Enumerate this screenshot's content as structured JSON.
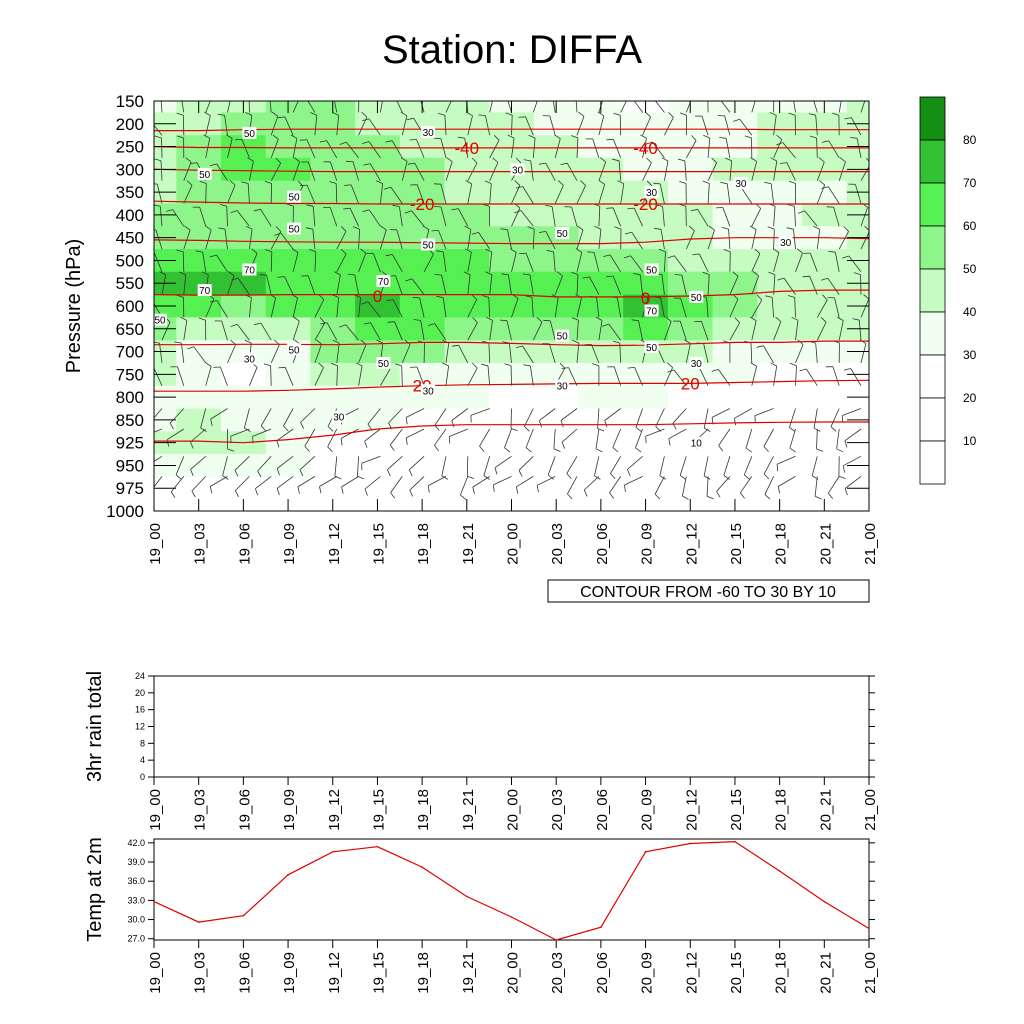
{
  "title": "Station: DIFFA",
  "colors": {
    "accent": "#e00000",
    "green_fills": [
      "#ffffff",
      "#ffffff",
      "#ffffff",
      "#f1fff0",
      "#c6fcc2",
      "#8ef58a",
      "#56f052",
      "#32c132",
      "#148f14"
    ]
  },
  "chart_data": [
    {
      "id": "cross_section",
      "type": "heatmap",
      "ylabel": "Pressure (hPa)",
      "y_levels": [
        150,
        200,
        250,
        300,
        350,
        400,
        450,
        500,
        550,
        600,
        650,
        700,
        750,
        800,
        850,
        925,
        950,
        975,
        1000
      ],
      "x_ticks": [
        "19_00",
        "19_03",
        "19_06",
        "19_09",
        "19_12",
        "19_15",
        "19_18",
        "19_21",
        "20_00",
        "20_03",
        "20_06",
        "20_09",
        "20_12",
        "20_15",
        "20_18",
        "20_21",
        "21_00"
      ],
      "info_label": "CONTOUR FROM -60 TO 30 BY 10",
      "colorbar": {
        "levels": [
          10,
          20,
          30,
          40,
          50,
          60,
          70,
          80
        ],
        "label_values": [
          "10",
          "20",
          "30",
          "40",
          "50",
          "60",
          "70",
          "80"
        ]
      },
      "humidity_grid": [
        [
          35,
          40,
          45,
          50,
          50,
          45,
          40,
          40,
          38,
          35,
          30,
          28,
          30,
          32,
          35,
          38,
          40
        ],
        [
          40,
          48,
          52,
          55,
          50,
          48,
          45,
          42,
          40,
          38,
          33,
          30,
          32,
          35,
          40,
          40,
          42
        ],
        [
          42,
          55,
          60,
          58,
          52,
          50,
          48,
          45,
          42,
          40,
          38,
          35,
          35,
          38,
          42,
          42,
          45
        ],
        [
          45,
          55,
          62,
          60,
          55,
          52,
          50,
          48,
          45,
          42,
          40,
          38,
          38,
          40,
          42,
          42,
          45
        ],
        [
          48,
          52,
          55,
          55,
          55,
          52,
          50,
          48,
          45,
          45,
          42,
          40,
          38,
          35,
          35,
          38,
          45
        ],
        [
          50,
          50,
          52,
          55,
          55,
          52,
          50,
          50,
          48,
          48,
          45,
          42,
          40,
          30,
          33,
          40,
          45
        ],
        [
          52,
          55,
          58,
          58,
          58,
          55,
          52,
          52,
          52,
          50,
          48,
          45,
          42,
          38,
          35,
          38,
          40
        ],
        [
          60,
          62,
          62,
          62,
          62,
          60,
          60,
          60,
          58,
          58,
          55,
          52,
          48,
          42,
          40,
          40,
          42
        ],
        [
          75,
          72,
          70,
          68,
          62,
          68,
          65,
          62,
          62,
          62,
          62,
          65,
          55,
          50,
          45,
          42,
          42
        ],
        [
          68,
          62,
          58,
          60,
          60,
          74,
          66,
          62,
          62,
          62,
          62,
          72,
          66,
          55,
          48,
          45,
          45
        ],
        [
          55,
          40,
          40,
          45,
          58,
          65,
          60,
          58,
          58,
          55,
          58,
          62,
          55,
          45,
          42,
          40,
          40
        ],
        [
          48,
          30,
          30,
          32,
          50,
          52,
          50,
          48,
          45,
          42,
          45,
          48,
          42,
          38,
          35,
          35,
          35
        ],
        [
          40,
          30,
          28,
          30,
          42,
          40,
          38,
          35,
          33,
          32,
          35,
          38,
          35,
          30,
          28,
          28,
          28
        ],
        [
          35,
          35,
          32,
          32,
          38,
          35,
          32,
          30,
          28,
          28,
          30,
          30,
          28,
          25,
          22,
          22,
          22
        ],
        [
          38,
          40,
          38,
          35,
          32,
          30,
          28,
          25,
          22,
          20,
          22,
          22,
          20,
          18,
          15,
          15,
          15
        ],
        [
          42,
          45,
          40,
          35,
          28,
          22,
          18,
          15,
          12,
          12,
          12,
          12,
          10,
          10,
          10,
          10,
          10
        ],
        [
          35,
          38,
          32,
          30,
          18,
          12,
          10,
          10,
          10,
          10,
          10,
          10,
          10,
          10,
          10,
          10,
          10
        ],
        [
          18,
          18,
          15,
          12,
          10,
          10,
          10,
          10,
          10,
          10,
          10,
          10,
          10,
          10,
          10,
          10,
          10
        ],
        [
          10,
          10,
          10,
          10,
          10,
          10,
          10,
          10,
          10,
          10,
          10,
          10,
          10,
          10,
          10,
          10,
          10
        ]
      ],
      "temperature_contours": [
        {
          "value": -40,
          "pressure_by_time": [
            215,
            215,
            213,
            212,
            212,
            212,
            212,
            212,
            212,
            212,
            212,
            212,
            212,
            212,
            213,
            213,
            213
          ]
        },
        {
          "value": -40,
          "pressure_by_time": [
            250,
            252,
            252,
            253,
            253,
            253,
            253,
            253,
            253,
            253,
            253,
            253,
            253,
            253,
            253,
            253,
            253
          ]
        },
        {
          "value": -20,
          "pressure_by_time": [
            300,
            302,
            303,
            304,
            305,
            305,
            305,
            305,
            305,
            305,
            305,
            305,
            305,
            305,
            305,
            305,
            305
          ]
        },
        {
          "value": -20,
          "pressure_by_time": [
            370,
            372,
            374,
            375,
            375,
            376,
            376,
            376,
            376,
            376,
            376,
            376,
            376,
            376,
            376,
            376,
            376
          ]
        },
        {
          "value": -20,
          "pressure_by_time": [
            455,
            456,
            458,
            459,
            460,
            460,
            461,
            462,
            463,
            463,
            463,
            460,
            453,
            450,
            450,
            450,
            452
          ]
        },
        {
          "value": 0,
          "pressure_by_time": [
            575,
            576,
            576,
            575,
            575,
            575,
            575,
            575,
            575,
            580,
            580,
            580,
            578,
            575,
            568,
            565,
            565
          ]
        },
        {
          "value": 0,
          "pressure_by_time": [
            685,
            685,
            684,
            684,
            685,
            683,
            680,
            680,
            682,
            685,
            687,
            686,
            683,
            680,
            680,
            677,
            677
          ]
        },
        {
          "value": 20,
          "pressure_by_time": [
            787,
            787,
            787,
            785,
            782,
            778,
            775,
            773,
            772,
            771,
            770,
            770,
            770,
            768,
            766,
            764,
            763
          ]
        },
        {
          "value": 20,
          "pressure_by_time": [
            920,
            920,
            925,
            915,
            900,
            880,
            870,
            866,
            866,
            866,
            866,
            866,
            863,
            860,
            858,
            857,
            857
          ]
        }
      ],
      "temperature_labels": [
        {
          "text": "-40",
          "time": "19_21",
          "pressure": 253
        },
        {
          "text": "-40",
          "time": "20_09",
          "pressure": 253
        },
        {
          "text": "-20",
          "time": "19_18",
          "pressure": 376
        },
        {
          "text": "-20",
          "time": "20_09",
          "pressure": 376
        },
        {
          "text": "0",
          "time": "19_15",
          "pressure": 578
        },
        {
          "text": "0",
          "time": "20_09",
          "pressure": 582
        },
        {
          "text": "20",
          "time": "19_18",
          "pressure": 775
        },
        {
          "text": "20",
          "time": "20_12",
          "pressure": 770
        }
      ],
      "humidity_labels": [
        {
          "text": "30",
          "time": "19_18",
          "pressure": 218
        },
        {
          "text": "50",
          "time": "19_06",
          "pressure": 220
        },
        {
          "text": "50",
          "time": "19_03",
          "pressure": 310
        },
        {
          "text": "30",
          "time": "20_00",
          "pressure": 300
        },
        {
          "text": "30",
          "time": "20_15",
          "pressure": 330
        },
        {
          "text": "30",
          "time": "20_09",
          "pressure": 350
        },
        {
          "text": "50",
          "time": "19_09",
          "pressure": 360
        },
        {
          "text": "50",
          "time": "19_09",
          "pressure": 430
        },
        {
          "text": "50",
          "time": "20_03",
          "pressure": 440
        },
        {
          "text": "30",
          "time": "20_18",
          "pressure": 460
        },
        {
          "text": "50",
          "time": "19_18",
          "pressure": 465
        },
        {
          "text": "70",
          "time": "19_06",
          "pressure": 520
        },
        {
          "text": "70",
          "time": "19_03",
          "pressure": 565
        },
        {
          "text": "70",
          "time": "19_15",
          "pressure": 545
        },
        {
          "text": "50",
          "time": "20_09",
          "pressure": 520
        },
        {
          "text": "50",
          "time": "20_12",
          "pressure": 580
        },
        {
          "text": "70",
          "time": "20_09",
          "pressure": 610
        },
        {
          "text": "50",
          "time": "19_00",
          "pressure": 630
        },
        {
          "text": "50",
          "time": "20_03",
          "pressure": 665
        },
        {
          "text": "50",
          "time": "19_09",
          "pressure": 695
        },
        {
          "text": "50",
          "time": "20_09",
          "pressure": 690
        },
        {
          "text": "30",
          "time": "19_06",
          "pressure": 715
        },
        {
          "text": "50",
          "time": "19_15",
          "pressure": 725
        },
        {
          "text": "30",
          "time": "20_12",
          "pressure": 725
        },
        {
          "text": "30",
          "time": "20_03",
          "pressure": 775
        },
        {
          "text": "30",
          "time": "19_18",
          "pressure": 785
        },
        {
          "text": "30",
          "time": "19_12",
          "pressure": 843
        },
        {
          "text": "10",
          "time": "20_12",
          "pressure": 925
        }
      ],
      "wind_barbs_rows": [
        175,
        225,
        275,
        325,
        375,
        425,
        475,
        525,
        575,
        625,
        675,
        725,
        775,
        825,
        880,
        940,
        962
      ]
    },
    {
      "id": "rain",
      "type": "line",
      "ylabel": "3hr rain total",
      "y_ticks": [
        "0",
        "4",
        "8",
        "12",
        "16",
        "20",
        "24"
      ],
      "ylim": [
        0,
        24
      ],
      "x": [
        "19_00",
        "19_03",
        "19_06",
        "19_09",
        "19_12",
        "19_15",
        "19_18",
        "19_21",
        "20_00",
        "20_03",
        "20_06",
        "20_09",
        "20_12",
        "20_15",
        "20_18",
        "20_21",
        "21_00"
      ],
      "values": [
        0,
        0,
        0,
        0,
        0,
        0,
        0,
        0,
        0,
        0,
        0,
        0,
        0,
        0,
        0,
        0,
        0
      ]
    },
    {
      "id": "temp2m",
      "type": "line",
      "ylabel": "Temp at 2m",
      "y_ticks": [
        "27.0",
        "30.0",
        "33.0",
        "36.0",
        "39.0",
        "42.0"
      ],
      "ylim": [
        26.8,
        42.6
      ],
      "x": [
        "19_00",
        "19_03",
        "19_06",
        "19_09",
        "19_12",
        "19_15",
        "19_18",
        "19_21",
        "20_00",
        "20_03",
        "20_06",
        "20_09",
        "20_12",
        "20_15",
        "20_18",
        "20_21",
        "21_00"
      ],
      "values": [
        32.8,
        29.6,
        30.6,
        37.0,
        40.6,
        41.4,
        38.2,
        33.6,
        30.4,
        26.8,
        28.8,
        40.6,
        41.9,
        42.2,
        37.6,
        32.8,
        28.6
      ]
    }
  ]
}
